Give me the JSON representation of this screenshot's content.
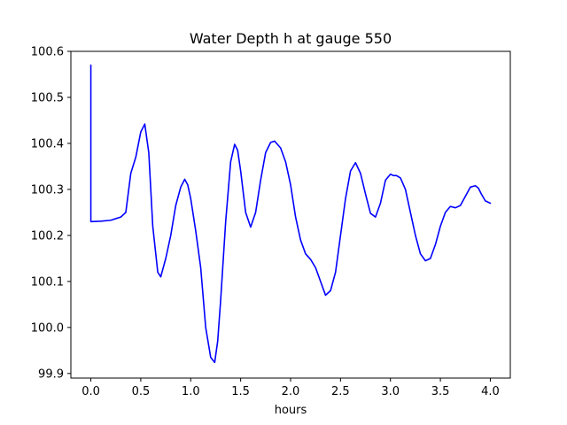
{
  "chart_data": {
    "type": "line",
    "title": "Water Depth h at gauge 550",
    "xlabel": "hours",
    "ylabel": "",
    "xlim": [
      -0.2,
      4.2
    ],
    "ylim": [
      99.89,
      100.6
    ],
    "xticks": [
      0.0,
      0.5,
      1.0,
      1.5,
      2.0,
      2.5,
      3.0,
      3.5,
      4.0
    ],
    "xtick_labels": [
      "0.0",
      "0.5",
      "1.0",
      "1.5",
      "2.0",
      "2.5",
      "3.0",
      "3.5",
      "4.0"
    ],
    "yticks": [
      99.9,
      100.0,
      100.1,
      100.2,
      100.3,
      100.4,
      100.5,
      100.6
    ],
    "ytick_labels": [
      "99.9",
      "100.0",
      "100.1",
      "100.2",
      "100.3",
      "100.4",
      "100.5",
      "100.6"
    ],
    "grid": false,
    "legend": "none",
    "series": [
      {
        "color": "#0000ff",
        "x": [
          0.0,
          0.0,
          0.0,
          0.1,
          0.2,
          0.3,
          0.35,
          0.4,
          0.45,
          0.5,
          0.54,
          0.58,
          0.62,
          0.67,
          0.7,
          0.75,
          0.8,
          0.85,
          0.9,
          0.94,
          0.97,
          1.0,
          1.05,
          1.1,
          1.15,
          1.2,
          1.24,
          1.27,
          1.3,
          1.35,
          1.4,
          1.44,
          1.47,
          1.5,
          1.55,
          1.6,
          1.65,
          1.7,
          1.75,
          1.8,
          1.84,
          1.9,
          1.95,
          2.0,
          2.05,
          2.1,
          2.15,
          2.2,
          2.25,
          2.3,
          2.35,
          2.4,
          2.45,
          2.5,
          2.55,
          2.6,
          2.65,
          2.7,
          2.75,
          2.8,
          2.85,
          2.9,
          2.95,
          3.0,
          3.03,
          3.06,
          3.1,
          3.15,
          3.2,
          3.25,
          3.3,
          3.35,
          3.4,
          3.45,
          3.5,
          3.55,
          3.6,
          3.65,
          3.7,
          3.75,
          3.8,
          3.85,
          3.88,
          3.91,
          3.95,
          4.0
        ],
        "y": [
          100.57,
          100.23,
          100.23,
          100.231,
          100.233,
          100.24,
          100.25,
          100.335,
          100.37,
          100.425,
          100.442,
          100.38,
          100.22,
          100.12,
          100.11,
          100.15,
          100.2,
          100.265,
          100.305,
          100.322,
          100.31,
          100.28,
          100.21,
          100.13,
          100.0,
          99.935,
          99.924,
          99.97,
          100.06,
          100.23,
          100.36,
          100.398,
          100.385,
          100.34,
          100.25,
          100.218,
          100.25,
          100.32,
          100.38,
          100.402,
          100.405,
          100.39,
          100.36,
          100.31,
          100.24,
          100.19,
          100.16,
          100.148,
          100.13,
          100.1,
          100.07,
          100.08,
          100.12,
          100.2,
          100.28,
          100.34,
          100.358,
          100.335,
          100.29,
          100.248,
          100.24,
          100.27,
          100.32,
          100.333,
          100.33,
          100.33,
          100.325,
          100.3,
          100.25,
          100.2,
          100.16,
          100.145,
          100.15,
          100.18,
          100.22,
          100.25,
          100.263,
          100.26,
          100.265,
          100.285,
          100.305,
          100.308,
          100.303,
          100.29,
          100.275,
          100.27
        ]
      }
    ]
  }
}
